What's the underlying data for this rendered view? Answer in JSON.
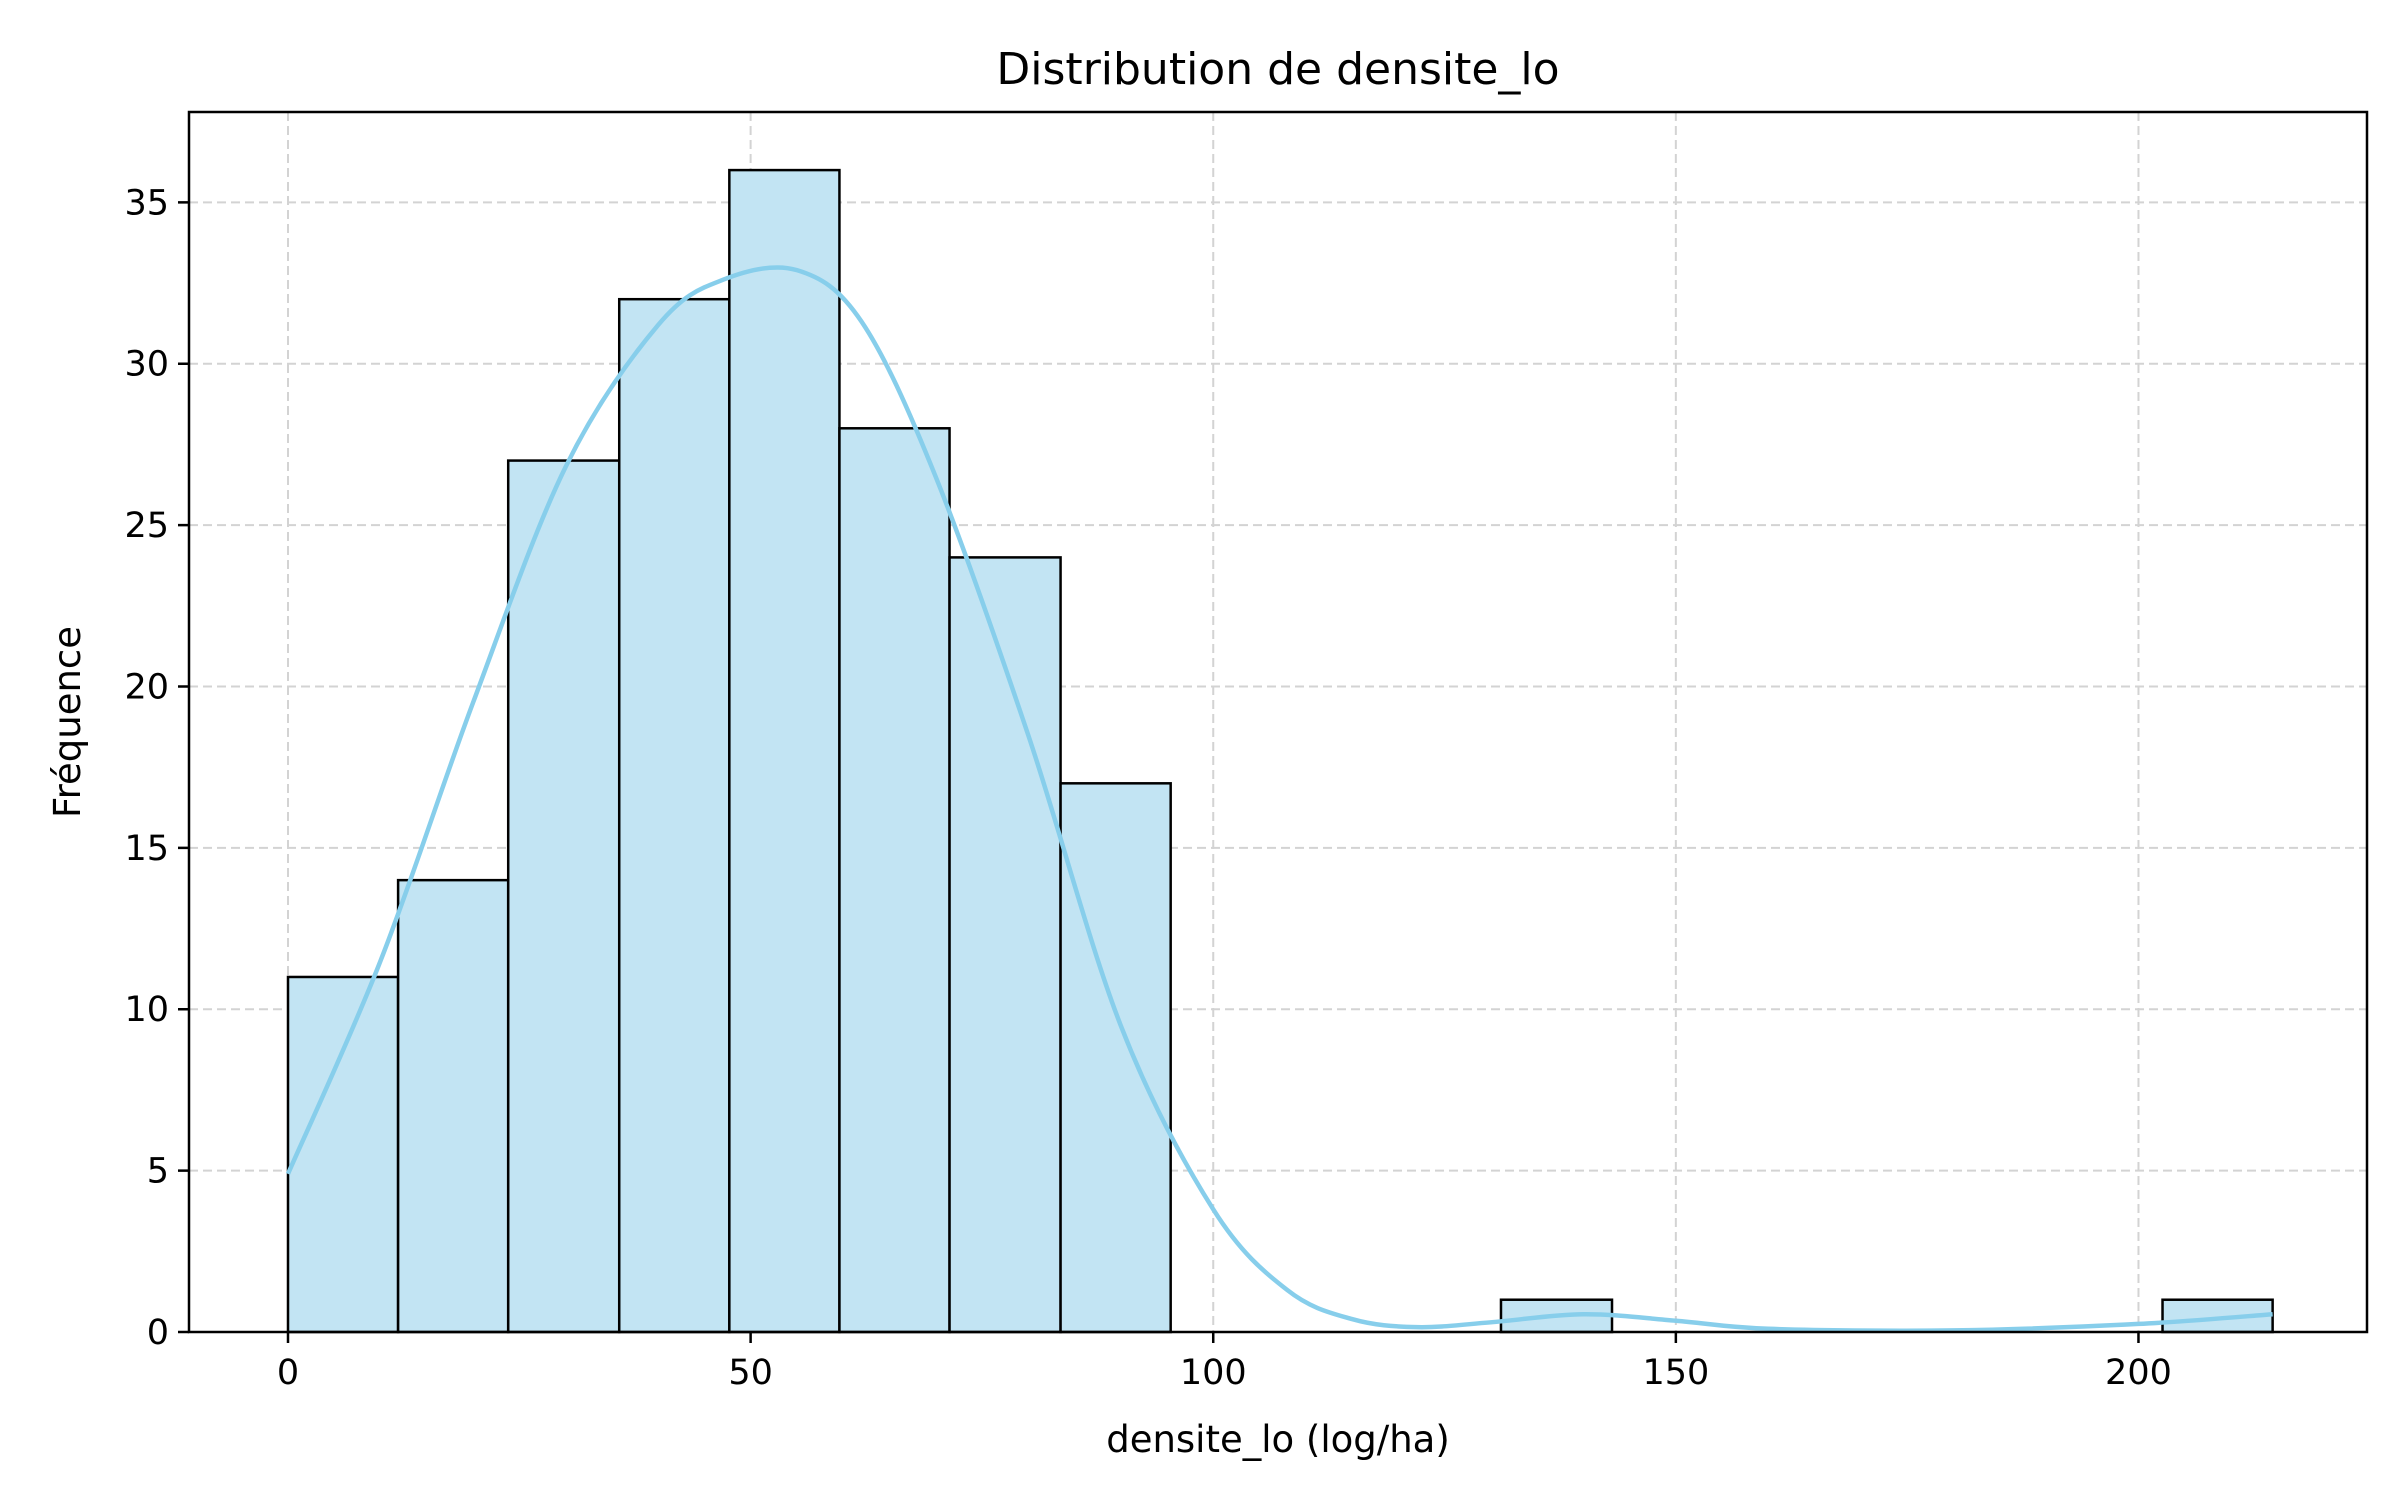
{
  "chart_data": {
    "type": "bar",
    "subtype": "histogram",
    "title": "Distribution de densite_lo",
    "xlabel": "densite_lo (log/ha)",
    "ylabel": "Fréquence",
    "xlim": [
      -10.7,
      224.7
    ],
    "ylim": [
      0,
      37.8
    ],
    "xticks": [
      0,
      50,
      100,
      150,
      200
    ],
    "yticks": [
      0,
      5,
      10,
      15,
      20,
      25,
      30,
      35
    ],
    "grid": true,
    "bins": [
      {
        "x0": 0,
        "x1": 11.9,
        "count": 11
      },
      {
        "x0": 11.9,
        "x1": 23.8,
        "count": 14
      },
      {
        "x0": 23.8,
        "x1": 35.8,
        "count": 27
      },
      {
        "x0": 35.8,
        "x1": 47.7,
        "count": 32
      },
      {
        "x0": 47.7,
        "x1": 59.6,
        "count": 36
      },
      {
        "x0": 59.6,
        "x1": 71.5,
        "count": 28
      },
      {
        "x0": 71.5,
        "x1": 83.5,
        "count": 24
      },
      {
        "x0": 83.5,
        "x1": 95.4,
        "count": 17
      },
      {
        "x0": 131.1,
        "x1": 143.1,
        "count": 1
      },
      {
        "x0": 202.6,
        "x1": 214.5,
        "count": 1
      }
    ],
    "kde": {
      "x": [
        0,
        10,
        20,
        30,
        40,
        47,
        55,
        62,
        70,
        80,
        90,
        100,
        108,
        115,
        122,
        130,
        140,
        150,
        160,
        180,
        200,
        214.5
      ],
      "y": [
        4.9,
        11.5,
        19.5,
        26.8,
        31.2,
        32.6,
        32.9,
        31.3,
        26.5,
        18.5,
        9.5,
        3.8,
        1.3,
        0.4,
        0.15,
        0.3,
        0.55,
        0.35,
        0.1,
        0.05,
        0.25,
        0.55
      ]
    },
    "colors": {
      "bar_fill": "#c2e4f3",
      "bar_edge": "#000000",
      "kde_line": "#87ceeb",
      "grid": "#d3d3d3"
    }
  }
}
